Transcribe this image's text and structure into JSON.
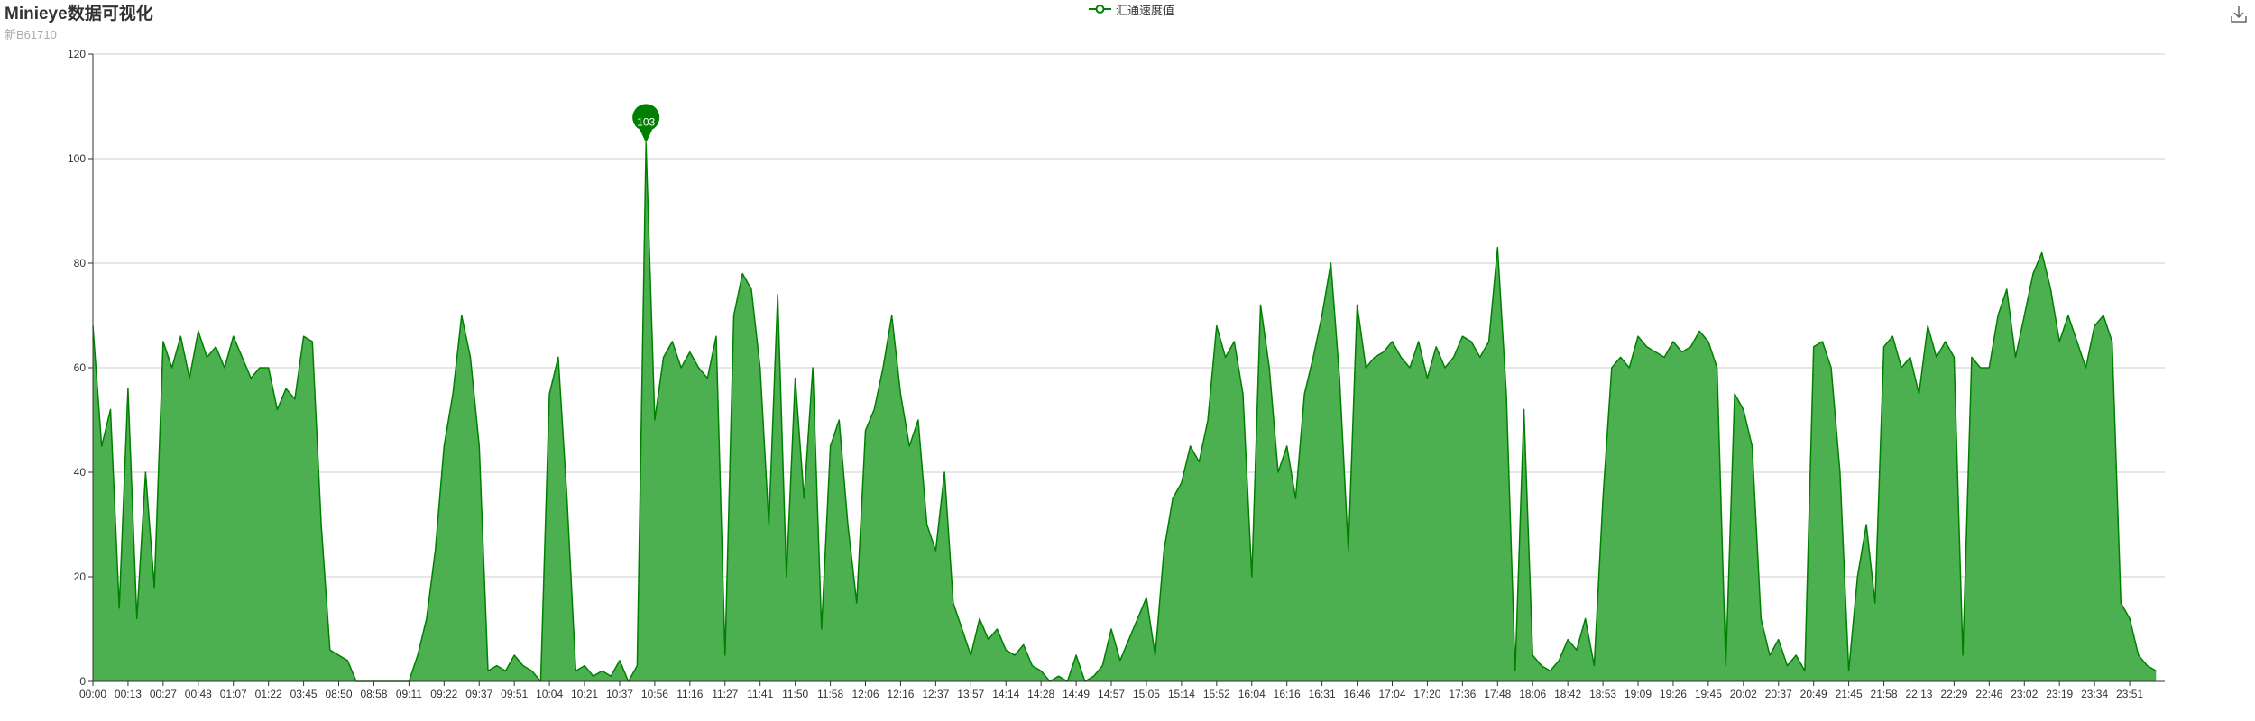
{
  "title": "Minieye数据可视化",
  "subtitle": "新B61710",
  "toolbox": {
    "icon": "download-icon"
  },
  "colors": {
    "series": "#008000",
    "area": "#4caf50",
    "grid": "#cccccc",
    "axis": "#333333"
  },
  "chart_data": {
    "type": "area",
    "title": "Minieye数据可视化",
    "subtitle": "新B61710",
    "legend": {
      "position": "top-center"
    },
    "grid": true,
    "x_tick_labels": [
      "00:00",
      "00:13",
      "00:27",
      "00:48",
      "01:07",
      "01:22",
      "03:45",
      "08:50",
      "08:58",
      "09:11",
      "09:22",
      "09:37",
      "09:51",
      "10:04",
      "10:21",
      "10:37",
      "10:56",
      "11:16",
      "11:27",
      "11:41",
      "11:50",
      "11:58",
      "12:06",
      "12:16",
      "12:37",
      "13:57",
      "14:14",
      "14:28",
      "14:49",
      "14:57",
      "15:05",
      "15:14",
      "15:52",
      "16:04",
      "16:16",
      "16:31",
      "16:46",
      "17:04",
      "17:20",
      "17:36",
      "17:48",
      "18:06",
      "18:42",
      "18:53",
      "19:09",
      "19:26",
      "19:45",
      "20:02",
      "20:37",
      "20:49",
      "21:45",
      "21:58",
      "22:13",
      "22:29",
      "22:46",
      "23:02",
      "23:19",
      "23:34",
      "23:51"
    ],
    "y_ticks": [
      0,
      20,
      40,
      60,
      80,
      100,
      120
    ],
    "ylim": [
      0,
      120
    ],
    "series": [
      {
        "name": "汇通速度值",
        "points_per_tick": 4,
        "values": [
          68,
          45,
          52,
          14,
          56,
          12,
          40,
          18,
          65,
          60,
          66,
          58,
          67,
          62,
          64,
          60,
          66,
          62,
          58,
          60,
          60,
          52,
          56,
          54,
          66,
          65,
          30,
          6,
          5,
          4,
          0,
          0,
          0,
          0,
          0,
          0,
          0,
          5,
          12,
          25,
          45,
          55,
          70,
          62,
          45,
          2,
          3,
          2,
          5,
          3,
          2,
          0,
          55,
          62,
          35,
          2,
          3,
          1,
          2,
          1,
          4,
          0,
          3,
          103,
          50,
          62,
          65,
          60,
          63,
          60,
          58,
          66,
          5,
          70,
          78,
          75,
          60,
          30,
          74,
          20,
          58,
          35,
          60,
          10,
          45,
          50,
          30,
          15,
          48,
          52,
          60,
          70,
          55,
          45,
          50,
          30,
          25,
          40,
          15,
          10,
          5,
          12,
          8,
          10,
          6,
          5,
          7,
          3,
          2,
          0,
          1,
          0,
          5,
          0,
          1,
          3,
          10,
          4,
          8,
          12,
          16,
          5,
          25,
          35,
          38,
          45,
          42,
          50,
          68,
          62,
          65,
          55,
          20,
          72,
          60,
          40,
          45,
          35,
          55,
          62,
          70,
          80,
          58,
          25,
          72,
          60,
          62,
          63,
          65,
          62,
          60,
          65,
          58,
          64,
          60,
          62,
          66,
          65,
          62,
          65,
          83,
          55,
          2,
          52,
          5,
          3,
          2,
          4,
          8,
          6,
          12,
          3,
          35,
          60,
          62,
          60,
          66,
          64,
          63,
          62,
          65,
          63,
          64,
          67,
          65,
          60,
          3,
          55,
          52,
          45,
          12,
          5,
          8,
          3,
          5,
          2,
          64,
          65,
          60,
          40,
          2,
          20,
          30,
          15,
          64,
          66,
          60,
          62,
          55,
          68,
          62,
          65,
          62,
          5,
          62,
          60,
          60,
          70,
          75,
          62,
          70,
          78,
          82,
          75,
          65,
          70,
          65,
          60,
          68,
          70,
          65,
          15,
          12,
          5,
          3,
          2
        ]
      }
    ]
  }
}
